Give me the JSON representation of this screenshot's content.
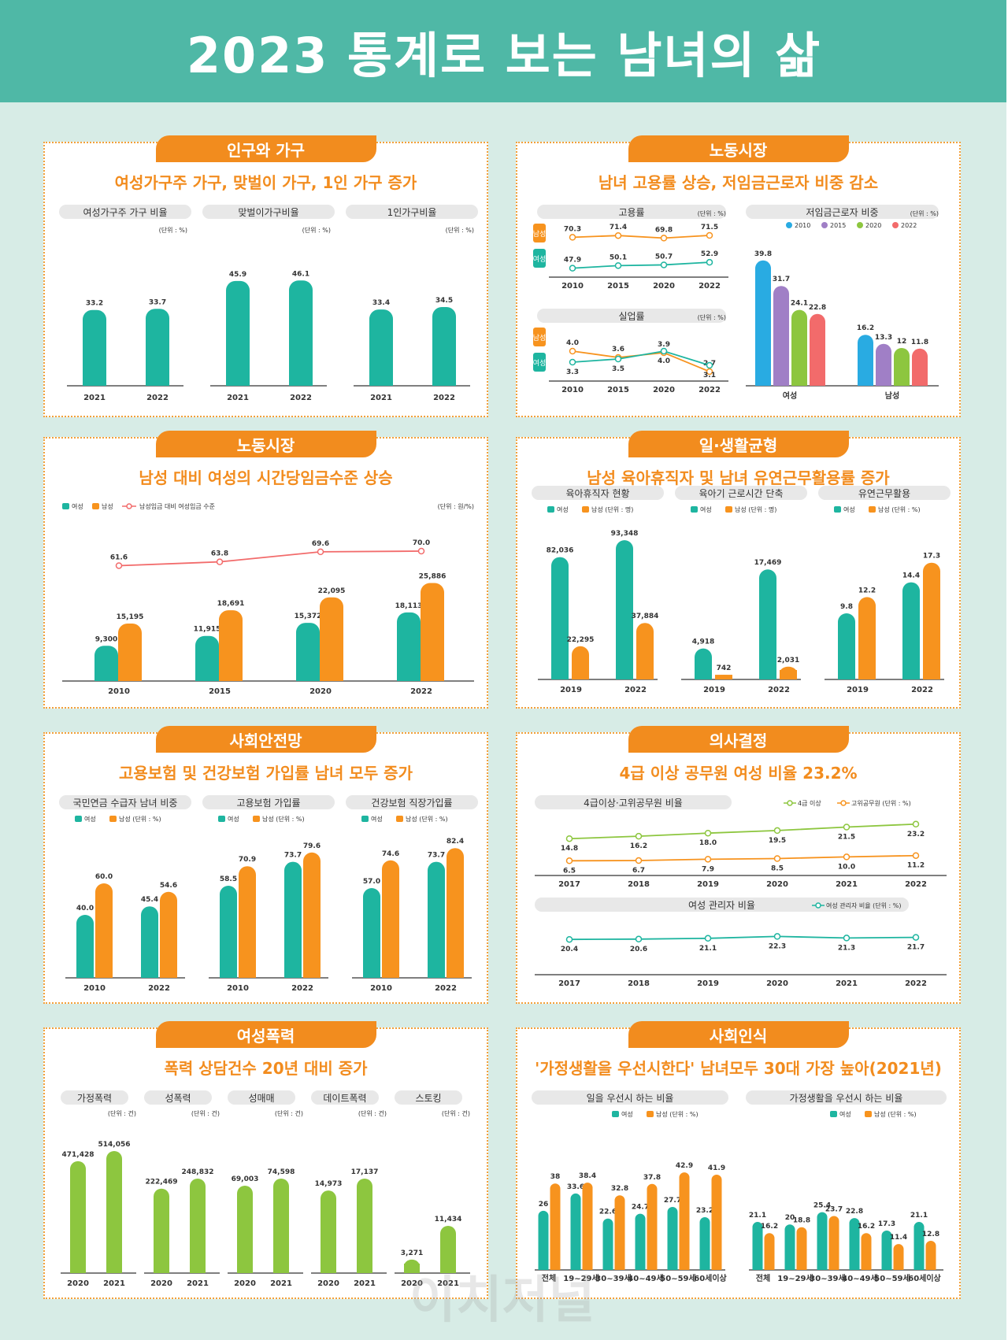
{
  "title": "2023 통계로 보는 남녀의 삶",
  "colors": {
    "female": "#1eb5a0",
    "male": "#f7931e",
    "green": "#8dc63f",
    "blue": "#29abe2",
    "purple": "#a07fc6",
    "red": "#f26b6b",
    "accent": "#f28c1e",
    "banner": "#4fb8a6"
  },
  "watermark": "이치저널",
  "sections": [
    {
      "badge": "인구와 가구",
      "headline": "여성가구주 가구, 맞벌이 가구, 1인 가구 증가",
      "charts": [
        {
          "title": "여성가구주 가구 비율",
          "unit": "(단위 : %)",
          "categories": [
            "2021",
            "2022"
          ],
          "values": [
            33.2,
            33.7
          ]
        },
        {
          "title": "맞벌이가구비율",
          "unit": "(단위 : %)",
          "categories": [
            "2021",
            "2022"
          ],
          "values": [
            45.9,
            46.1
          ]
        },
        {
          "title": "1인가구비율",
          "unit": "(단위 : %)",
          "categories": [
            "2021",
            "2022"
          ],
          "values": [
            33.4,
            34.5
          ]
        }
      ]
    },
    {
      "badge": "노동시장",
      "headline": "남녀 고용률 상승, 저임금근로자 비중 감소",
      "charts": [
        {
          "title": "고용률",
          "unit": "(단위 : %)",
          "side_labels": [
            "남성",
            "여성"
          ],
          "categories": [
            "2010",
            "2015",
            "2020",
            "2022"
          ],
          "male": [
            70.3,
            71.4,
            69.8,
            71.5
          ],
          "female": [
            47.9,
            50.1,
            50.7,
            52.9
          ]
        },
        {
          "title": "실업률",
          "unit": "(단위 : %)",
          "side_labels": [
            "남성",
            "여성"
          ],
          "categories": [
            "2010",
            "2015",
            "2020",
            "2022"
          ],
          "male": [
            4.0,
            3.6,
            3.9,
            2.7
          ],
          "female": [
            3.3,
            3.5,
            4.0,
            3.1
          ]
        },
        {
          "title": "저임금근로자 비중",
          "unit": "(단위 : %)",
          "legend": [
            "2010",
            "2015",
            "2020",
            "2022"
          ],
          "groups": [
            "여성",
            "남성"
          ],
          "values": [
            [
              39.8,
              31.7,
              24.1,
              22.8
            ],
            [
              16.2,
              13.3,
              12.0,
              11.8
            ]
          ]
        }
      ]
    },
    {
      "badge": "노동시장",
      "headline": "남성 대비 여성의 시간당임금수준 상승",
      "charts": [
        {
          "legend": [
            "여성",
            "남성",
            "남성임금 대비 여성임금 수준"
          ],
          "unit": "(단위 : 원/%)",
          "categories": [
            "2010",
            "2015",
            "2020",
            "2022"
          ],
          "female": [
            9300,
            11915,
            15372,
            18113
          ],
          "male": [
            15195,
            18691,
            22095,
            25886
          ],
          "ratio": [
            61.6,
            63.8,
            69.6,
            70.0
          ],
          "female_labels": [
            "9,300",
            "11,915",
            "15,372",
            "18,113"
          ],
          "male_labels": [
            "15,195",
            "18,691",
            "22,095",
            "25,886"
          ],
          "ratio_labels": [
            "61.6",
            "63.8",
            "69.6",
            "70.0"
          ]
        }
      ]
    },
    {
      "badge": "일·생활균형",
      "headline": "남성 육아휴직자 및 남녀 유연근무활용률 증가",
      "charts": [
        {
          "title": "육아휴직자 현황",
          "legend": [
            "여성",
            "남성 (단위 : 명)"
          ],
          "categories": [
            "2019",
            "2022"
          ],
          "female": [
            82036,
            93348
          ],
          "male": [
            22295,
            37884
          ],
          "female_labels": [
            "82,036",
            "93,348"
          ],
          "male_labels": [
            "22,295",
            "37,884"
          ]
        },
        {
          "title": "육아기 근로시간 단축",
          "legend": [
            "여성",
            "남성 (단위 : 명)"
          ],
          "categories": [
            "2019",
            "2022"
          ],
          "female": [
            4918,
            17469
          ],
          "male": [
            742,
            2031
          ],
          "female_labels": [
            "4,918",
            "17,469"
          ],
          "male_labels": [
            "742",
            "2,031"
          ]
        },
        {
          "title": "유연근무활용",
          "legend": [
            "여성",
            "남성 (단위 : %)"
          ],
          "categories": [
            "2019",
            "2022"
          ],
          "female": [
            9.8,
            14.4
          ],
          "male": [
            12.2,
            17.3
          ],
          "female_labels": [
            "9.8",
            "14.4"
          ],
          "male_labels": [
            "12.2",
            "17.3"
          ]
        }
      ]
    },
    {
      "badge": "사회안전망",
      "headline": "고용보험 및 건강보험 가입률 남녀 모두 증가",
      "charts": [
        {
          "title": "국민연금 수급자 남녀 비중",
          "legend": [
            "여성",
            "남성 (단위 : %)"
          ],
          "categories": [
            "2010",
            "2022"
          ],
          "female": [
            40.0,
            45.4
          ],
          "male": [
            60.0,
            54.6
          ],
          "female_labels": [
            "40.0",
            "45.4"
          ],
          "male_labels": [
            "60.0",
            "54.6"
          ]
        },
        {
          "title": "고용보험 가입률",
          "legend": [
            "여성",
            "남성 (단위 : %)"
          ],
          "categories": [
            "2010",
            "2022"
          ],
          "female": [
            58.5,
            73.7
          ],
          "male": [
            70.9,
            79.6
          ],
          "female_labels": [
            "58.5",
            "73.7"
          ],
          "male_labels": [
            "70.9",
            "79.6"
          ]
        },
        {
          "title": "건강보험 직장가입률",
          "legend": [
            "여성",
            "남성 (단위 : %)"
          ],
          "categories": [
            "2010",
            "2022"
          ],
          "female": [
            57.0,
            73.7
          ],
          "male": [
            74.6,
            82.4
          ],
          "female_labels": [
            "57.0",
            "73.7"
          ],
          "male_labels": [
            "74.6",
            "82.4"
          ]
        }
      ]
    },
    {
      "badge": "의사결정",
      "headline": "4급 이상 공무원 여성 비율 23.2%",
      "charts": [
        {
          "title": "4급이상·고위공무원 비율",
          "legend": [
            "4급 이상",
            "고위공무원 (단위 : %)"
          ],
          "categories": [
            "2017",
            "2018",
            "2019",
            "2020",
            "2021",
            "2022"
          ],
          "grade4": [
            14.8,
            16.2,
            18.0,
            19.5,
            21.5,
            23.2
          ],
          "senior": [
            6.5,
            6.7,
            7.9,
            8.5,
            10.0,
            11.2
          ]
        },
        {
          "title": "여성 관리자 비율",
          "legend": [
            "여성 관리자 비율 (단위 : %)"
          ],
          "categories": [
            "2017",
            "2018",
            "2019",
            "2020",
            "2021",
            "2022"
          ],
          "values": [
            20.4,
            20.6,
            21.1,
            22.3,
            21.3,
            21.7
          ]
        }
      ]
    },
    {
      "badge": "여성폭력",
      "headline": "폭력 상담건수 20년 대비 증가",
      "charts": [
        {
          "title": "가정폭력",
          "unit": "(단위 : 건)",
          "categories": [
            "2020",
            "2021"
          ],
          "values": [
            471428,
            514056
          ],
          "labels": [
            "471,428",
            "514,056"
          ]
        },
        {
          "title": "성폭력",
          "unit": "(단위 : 건)",
          "categories": [
            "2020",
            "2021"
          ],
          "values": [
            222469,
            248832
          ],
          "labels": [
            "222,469",
            "248,832"
          ]
        },
        {
          "title": "성매매",
          "unit": "(단위 : 건)",
          "categories": [
            "2020",
            "2021"
          ],
          "values": [
            69003,
            74598
          ],
          "labels": [
            "69,003",
            "74,598"
          ]
        },
        {
          "title": "데이트폭력",
          "unit": "(단위 : 건)",
          "categories": [
            "2020",
            "2021"
          ],
          "values": [
            14973,
            17137
          ],
          "labels": [
            "14,973",
            "17,137"
          ]
        },
        {
          "title": "스토킹",
          "unit": "(단위 : 건)",
          "categories": [
            "2020",
            "2021"
          ],
          "values": [
            3271,
            11434
          ],
          "labels": [
            "3,271",
            "11,434"
          ]
        }
      ]
    },
    {
      "badge": "사회인식",
      "headline": "'가정생활을 우선시한다' 남녀모두 30대 가장 높아(2021년)",
      "charts": [
        {
          "title": "일을 우선시 하는 비율",
          "legend": [
            "여성",
            "남성 (단위 : %)"
          ],
          "categories": [
            "전체",
            "19~29세",
            "30~39세",
            "40~49세",
            "50~59세",
            "60세이상"
          ],
          "female": [
            26.0,
            33.6,
            22.6,
            24.7,
            27.7,
            23.2
          ],
          "male": [
            38.0,
            38.4,
            32.8,
            37.8,
            42.9,
            41.9
          ]
        },
        {
          "title": "가정생활을 우선시 하는 비율",
          "legend": [
            "여성",
            "남성 (단위 : %)"
          ],
          "categories": [
            "전체",
            "19~29세",
            "30~39세",
            "40~49세",
            "50~59세",
            "60세이상"
          ],
          "female": [
            21.1,
            20.0,
            25.4,
            22.8,
            17.3,
            21.1
          ],
          "male": [
            16.2,
            18.8,
            23.7,
            16.2,
            11.4,
            12.8
          ]
        }
      ]
    }
  ]
}
